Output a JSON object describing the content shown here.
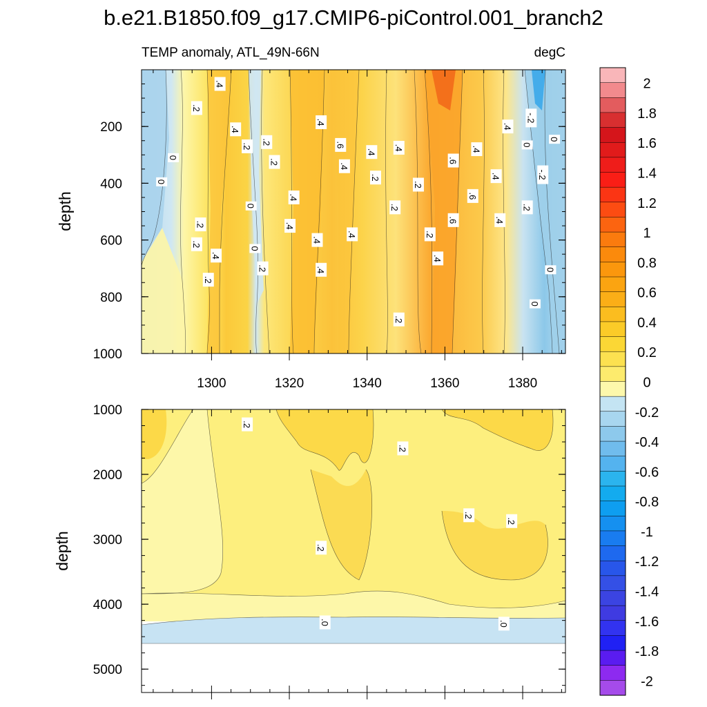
{
  "chart_data": {
    "type": "heatmap",
    "title": "b.e21.B1850.f09_g17.CMIP6-piControl.001_branch2",
    "subtitle_left": "TEMP anomaly, ATL_49N-66N",
    "subtitle_right": "degC",
    "xlim": [
      1282,
      1391
    ],
    "x_ticks": [
      "1300",
      "1320",
      "1340",
      "1360",
      "1380"
    ],
    "panels": [
      {
        "name": "upper",
        "ylabel": "depth",
        "ylim": [
          0,
          1000
        ],
        "y_ticks": [
          "200",
          "400",
          "600",
          "800",
          "1000"
        ],
        "y_tick_values": [
          200,
          400,
          600,
          800,
          1000
        ],
        "contour_labels": [
          {
            "text": ".4",
            "x": 1302,
            "y": 50
          },
          {
            "text": ".2",
            "x": 1296,
            "y": 135
          },
          {
            "text": ".4",
            "x": 1306,
            "y": 210
          },
          {
            "text": ".2",
            "x": 1309,
            "y": 270
          },
          {
            "text": ".2",
            "x": 1314,
            "y": 255
          },
          {
            "text": ".2",
            "x": 1316,
            "y": 325
          },
          {
            "text": "0",
            "x": 1290,
            "y": 310
          },
          {
            "text": "0",
            "x": 1287,
            "y": 395
          },
          {
            "text": ".4",
            "x": 1328,
            "y": 185
          },
          {
            "text": ".6",
            "x": 1333,
            "y": 265
          },
          {
            "text": ".4",
            "x": 1334,
            "y": 340
          },
          {
            "text": ".4",
            "x": 1341,
            "y": 290
          },
          {
            "text": ".2",
            "x": 1342,
            "y": 380
          },
          {
            "text": ".4",
            "x": 1348,
            "y": 275
          },
          {
            "text": ".2",
            "x": 1353,
            "y": 405
          },
          {
            "text": ".6",
            "x": 1362,
            "y": 320
          },
          {
            "text": ".4",
            "x": 1368,
            "y": 280
          },
          {
            "text": ".4",
            "x": 1373,
            "y": 375
          },
          {
            "text": ".6",
            "x": 1367,
            "y": 445
          },
          {
            "text": ".4",
            "x": 1376,
            "y": 200
          },
          {
            "text": "-.2",
            "x": 1382,
            "y": 170
          },
          {
            "text": "0",
            "x": 1381,
            "y": 265
          },
          {
            "text": "0",
            "x": 1388,
            "y": 245
          },
          {
            "text": "-.2",
            "x": 1385,
            "y": 370
          },
          {
            "text": ".4",
            "x": 1321,
            "y": 450
          },
          {
            "text": "0",
            "x": 1310,
            "y": 480
          },
          {
            "text": ".2",
            "x": 1297,
            "y": 545
          },
          {
            "text": ".2",
            "x": 1296,
            "y": 615
          },
          {
            "text": ".4",
            "x": 1320,
            "y": 550
          },
          {
            "text": ".4",
            "x": 1327,
            "y": 600
          },
          {
            "text": ".4",
            "x": 1336,
            "y": 580
          },
          {
            "text": ".2",
            "x": 1347,
            "y": 485
          },
          {
            "text": ".2",
            "x": 1356,
            "y": 580
          },
          {
            "text": ".6",
            "x": 1362,
            "y": 530
          },
          {
            "text": ".4",
            "x": 1374,
            "y": 530
          },
          {
            "text": ".2",
            "x": 1381,
            "y": 485
          },
          {
            "text": "0",
            "x": 1311,
            "y": 630
          },
          {
            "text": ".4",
            "x": 1301,
            "y": 655
          },
          {
            "text": ".2",
            "x": 1299,
            "y": 740
          },
          {
            "text": ".2",
            "x": 1313,
            "y": 700
          },
          {
            "text": ".4",
            "x": 1328,
            "y": 705
          },
          {
            "text": ".4",
            "x": 1358,
            "y": 665
          },
          {
            "text": "0",
            "x": 1387,
            "y": 705
          },
          {
            "text": "0",
            "x": 1383,
            "y": 825
          },
          {
            "text": ".2",
            "x": 1348,
            "y": 880
          }
        ]
      },
      {
        "name": "lower",
        "ylabel": "depth",
        "ylim": [
          1000,
          5360
        ],
        "y_ticks": [
          "1000",
          "2000",
          "3000",
          "4000",
          "5000"
        ],
        "y_tick_values": [
          1000,
          2000,
          3000,
          4000,
          5000
        ],
        "bottom_depth": 4630,
        "contour_labels": [
          {
            "text": ".2",
            "x": 1309,
            "y": 1230
          },
          {
            "text": ".2",
            "x": 1349,
            "y": 1600
          },
          {
            "text": ".2",
            "x": 1328,
            "y": 3130
          },
          {
            "text": ".2",
            "x": 1366,
            "y": 2630
          },
          {
            "text": ".2",
            "x": 1377,
            "y": 2720
          },
          {
            "text": ".0",
            "x": 1329,
            "y": 4280
          },
          {
            "text": ".0",
            "x": 1375,
            "y": 4300
          }
        ]
      }
    ],
    "colorbar": {
      "levels": [
        -2.0,
        -1.9,
        -1.8,
        -1.7,
        -1.6,
        -1.5,
        -1.4,
        -1.3,
        -1.2,
        -1.1,
        -1.0,
        -0.9,
        -0.8,
        -0.7,
        -0.6,
        -0.5,
        -0.4,
        -0.3,
        -0.2,
        -0.1,
        0.0,
        0.1,
        0.2,
        0.3,
        0.4,
        0.5,
        0.6,
        0.7,
        0.8,
        0.9,
        1.0,
        1.1,
        1.2,
        1.3,
        1.4,
        1.5,
        1.6,
        1.7,
        1.8,
        1.9,
        2.0
      ],
      "labels": [
        "2",
        "1.8",
        "1.6",
        "1.4",
        "1.2",
        "1",
        "0.8",
        "0.6",
        "0.4",
        "0.2",
        "0",
        "-0.2",
        "-0.4",
        "-0.6",
        "-0.8",
        "-1",
        "-1.2",
        "-1.4",
        "-1.6",
        "-1.8",
        "-2"
      ],
      "colors_top_to_bottom": [
        "#f9b6b9",
        "#f28a8d",
        "#e35c5e",
        "#d82f30",
        "#d5151b",
        "#e11b1b",
        "#ef1d1a",
        "#fa1e16",
        "#fb3514",
        "#fc4c12",
        "#fc6410",
        "#fb7b0e",
        "#fb8a0c",
        "#fb970d",
        "#fba411",
        "#fbae17",
        "#fbbd1f",
        "#fbcb28",
        "#fbd735",
        "#fce150",
        "#fdeb6d",
        "#fdf8ab",
        "#c4e4f3",
        "#a8d6ef",
        "#8dc9ec",
        "#70bced",
        "#54b3ef",
        "#2bb4ee",
        "#13abef",
        "#0e9ef0",
        "#1590f0",
        "#197cf0",
        "#1e69ef",
        "#2856ea",
        "#3450e6",
        "#3b44e2",
        "#3f3be1",
        "#3233f0",
        "#2021f4",
        "#5a1cf0",
        "#8d2af0",
        "#a54bea"
      ]
    }
  }
}
